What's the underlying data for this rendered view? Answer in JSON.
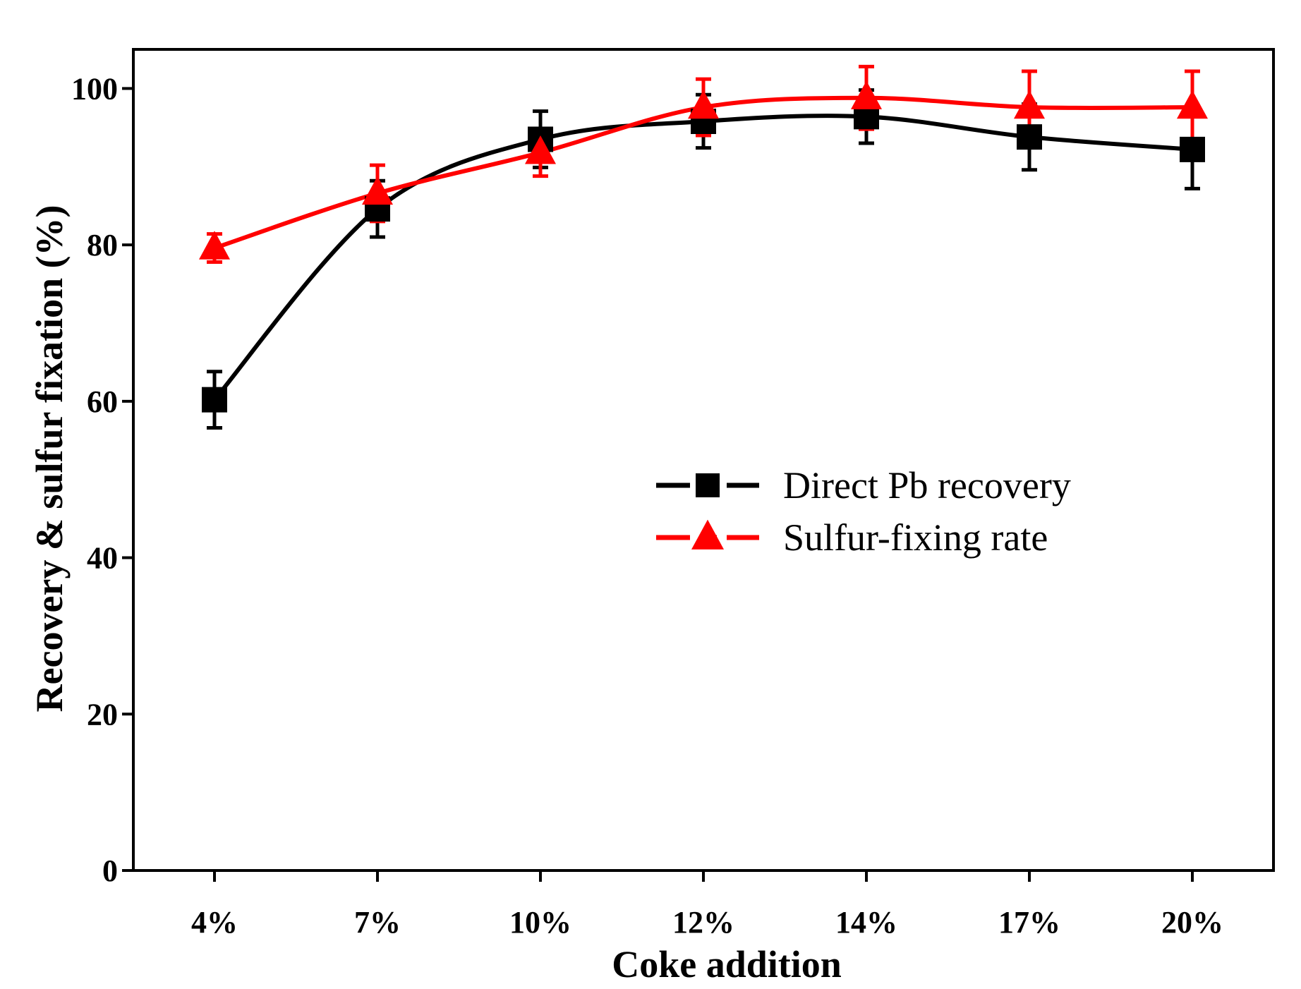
{
  "chart_data": {
    "type": "line",
    "title": "",
    "xlabel": "Coke addition",
    "ylabel": "Recovery & sulfur fixation (%)",
    "categories": [
      "4%",
      "7%",
      "10%",
      "12%",
      "14%",
      "17%",
      "20%"
    ],
    "ylim": [
      0,
      105
    ],
    "yticks": [
      0,
      20,
      40,
      60,
      80,
      100
    ],
    "grid": false,
    "legend_position": "center-right",
    "series": [
      {
        "name": "Direct Pb recovery",
        "color": "#000000",
        "marker": "square",
        "values": [
          60.2,
          84.6,
          93.5,
          95.8,
          96.4,
          93.8,
          92.2
        ],
        "errors": [
          3.6,
          3.6,
          3.6,
          3.4,
          3.4,
          4.2,
          5.0
        ]
      },
      {
        "name": "Sulfur-fixing rate",
        "color": "#ff0000",
        "marker": "triangle",
        "values": [
          79.6,
          86.6,
          91.8,
          97.6,
          98.8,
          97.6,
          97.6
        ],
        "errors": [
          1.8,
          3.6,
          3.0,
          3.6,
          4.0,
          4.6,
          4.6
        ]
      }
    ]
  }
}
